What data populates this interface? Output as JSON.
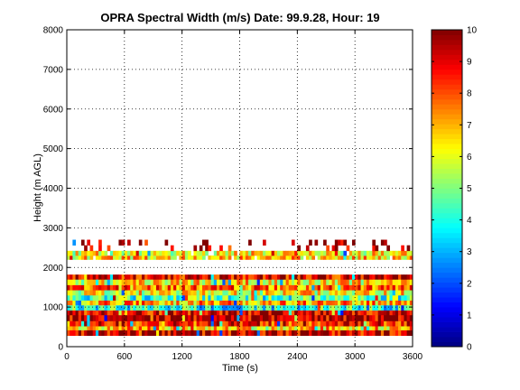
{
  "chart_data": {
    "type": "heatmap",
    "title": "OPRA Spectral Width (m/s)  Date: 99.9.28, Hour: 19",
    "xlabel": "Time (s)",
    "ylabel": "Height (m AGL)",
    "xlim": [
      0,
      3600
    ],
    "ylim": [
      0,
      8000
    ],
    "xticks": [
      "0",
      "600",
      "1200",
      "1800",
      "2400",
      "3000",
      "3600"
    ],
    "yticks": [
      "0",
      "1000",
      "2000",
      "3000",
      "4000",
      "5000",
      "6000",
      "7000",
      "8000"
    ],
    "grid": true,
    "colorbar": {
      "range": [
        0,
        10
      ],
      "ticks": [
        "0",
        "1",
        "2",
        "3",
        "4",
        "5",
        "6",
        "7",
        "8",
        "9",
        "10"
      ],
      "colormap": "jet",
      "placement": "right"
    },
    "height_bands": [
      {
        "y0": 280,
        "y1": 420,
        "typical_value": 9.3
      },
      {
        "y0": 420,
        "y1": 520,
        "typical_value": 6.8
      },
      {
        "y0": 520,
        "y1": 650,
        "typical_value": 8.6
      },
      {
        "y0": 650,
        "y1": 800,
        "typical_value": 9.6
      },
      {
        "y0": 800,
        "y1": 920,
        "typical_value": 9.1
      },
      {
        "y0": 920,
        "y1": 1050,
        "typical_value": 4.0
      },
      {
        "y0": 1050,
        "y1": 1170,
        "typical_value": 7.2
      },
      {
        "y0": 1170,
        "y1": 1300,
        "typical_value": 4.5
      },
      {
        "y0": 1300,
        "y1": 1430,
        "typical_value": 6.2
      },
      {
        "y0": 1430,
        "y1": 1560,
        "typical_value": 7.6
      },
      {
        "y0": 1560,
        "y1": 1700,
        "typical_value": 6.4
      },
      {
        "y0": 1700,
        "y1": 1820,
        "typical_value": 9.1
      },
      {
        "y0": 2200,
        "y1": 2300,
        "typical_value": 6.6
      },
      {
        "y0": 2300,
        "y1": 2420,
        "typical_value": 6.2
      },
      {
        "y0": 2420,
        "y1": 2560,
        "typical_value": 9.4
      },
      {
        "y0": 2560,
        "y1": 2700,
        "typical_value": 9.6
      }
    ]
  }
}
